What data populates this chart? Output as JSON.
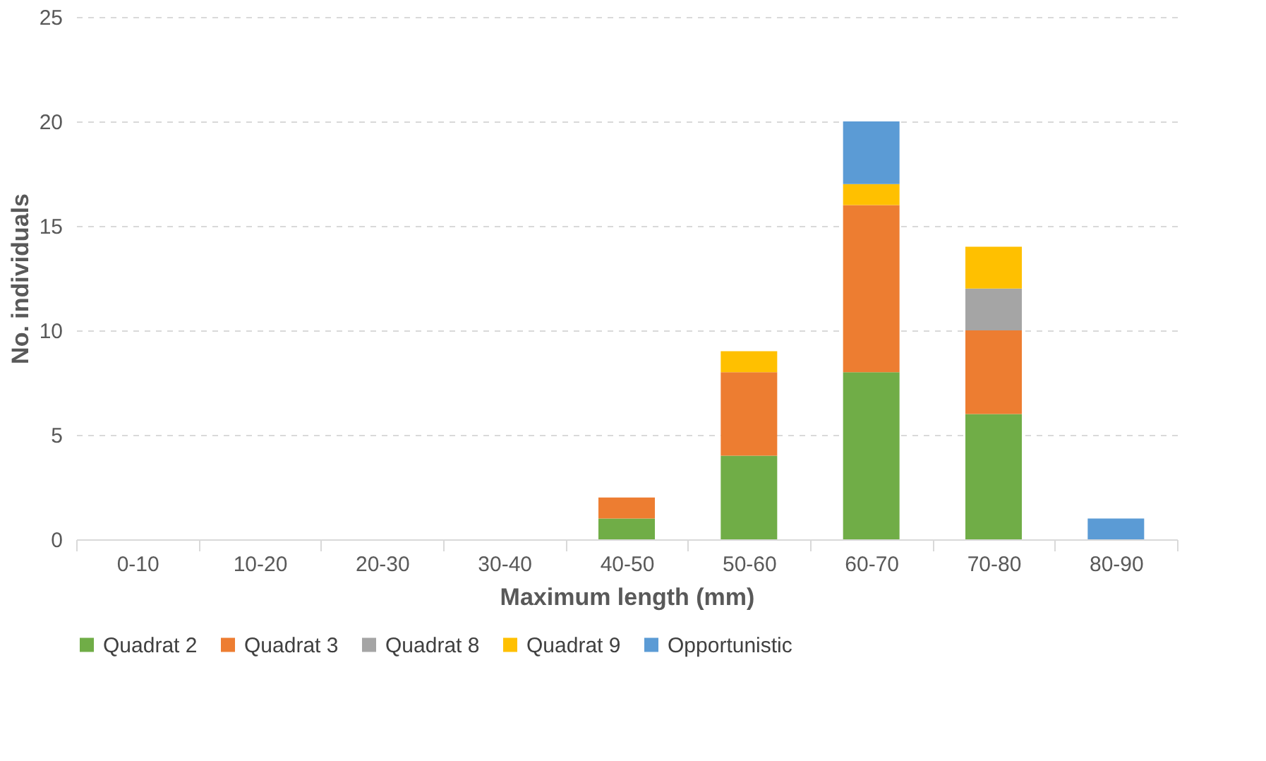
{
  "chart_data": {
    "type": "bar",
    "stacked": true,
    "xlabel": "Maximum length (mm)",
    "ylabel": "No. individuals",
    "categories": [
      "0-10",
      "10-20",
      "20-30",
      "30-40",
      "40-50",
      "50-60",
      "60-70",
      "70-80",
      "80-90"
    ],
    "series": [
      {
        "name": "Quadrat 2",
        "color": "#70ad47",
        "values": [
          0,
          0,
          0,
          0,
          1,
          4,
          8,
          6,
          0
        ]
      },
      {
        "name": "Quadrat 3",
        "color": "#ed7d31",
        "values": [
          0,
          0,
          0,
          0,
          1,
          4,
          8,
          4,
          0
        ]
      },
      {
        "name": "Quadrat 8",
        "color": "#a5a5a5",
        "values": [
          0,
          0,
          0,
          0,
          0,
          0,
          0,
          2,
          0
        ]
      },
      {
        "name": "Quadrat 9",
        "color": "#ffc000",
        "values": [
          0,
          0,
          0,
          0,
          0,
          1,
          1,
          2,
          0
        ]
      },
      {
        "name": "Opportunistic",
        "color": "#5b9bd5",
        "values": [
          0,
          0,
          0,
          0,
          0,
          0,
          3,
          0,
          1
        ]
      }
    ],
    "ylim": [
      0,
      25
    ],
    "yticks": [
      0,
      5,
      10,
      15,
      20,
      25
    ],
    "grid": "y",
    "legend": "bottom"
  }
}
